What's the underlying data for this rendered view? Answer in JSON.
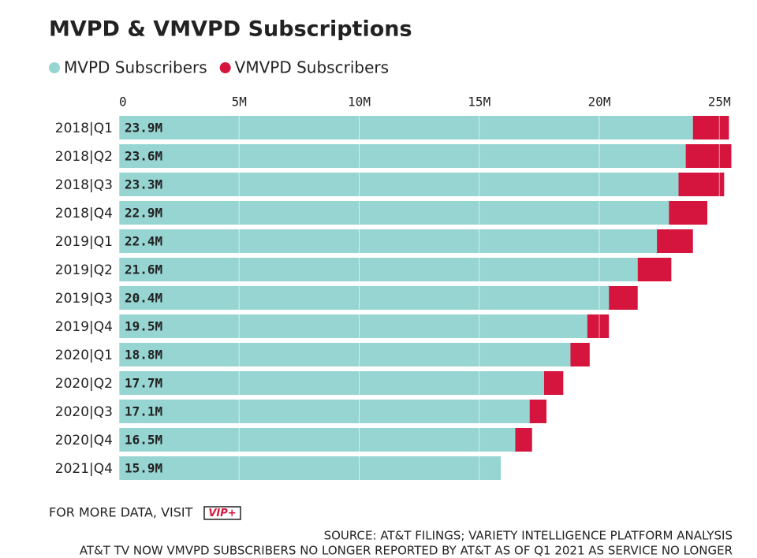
{
  "chart_data": {
    "type": "bar",
    "orientation": "horizontal",
    "stacked": true,
    "title": "MVPD & VMVPD Subscriptions",
    "categories": [
      "2018|Q1",
      "2018|Q2",
      "2018|Q3",
      "2018|Q4",
      "2019|Q1",
      "2019|Q2",
      "2019|Q3",
      "2019|Q4",
      "2020|Q1",
      "2020|Q2",
      "2020|Q3",
      "2020|Q4",
      "2021|Q4"
    ],
    "series": [
      {
        "name": "MVPD Subscribers",
        "color": "#96d5d2",
        "values": [
          23.9,
          23.6,
          23.3,
          22.9,
          22.4,
          21.6,
          20.4,
          19.5,
          18.8,
          17.7,
          17.1,
          16.5,
          15.9
        ],
        "value_labels": [
          "23.9M",
          "23.6M",
          "23.3M",
          "22.9M",
          "22.4M",
          "21.6M",
          "20.4M",
          "19.5M",
          "18.8M",
          "17.7M",
          "17.1M",
          "16.5M",
          "15.9M"
        ]
      },
      {
        "name": "VMVPD Subscribers",
        "color": "#d6153f",
        "values": [
          1.5,
          1.9,
          1.9,
          1.6,
          1.5,
          1.4,
          1.2,
          0.9,
          0.8,
          0.8,
          0.7,
          0.7,
          null
        ]
      }
    ],
    "xlim": [
      0,
      26
    ],
    "xticks": [
      0,
      {
        "value": 5,
        "label": "5M"
      },
      {
        "value": 10,
        "label": "10M"
      },
      {
        "value": 15,
        "label": "15M"
      },
      {
        "value": 20,
        "label": "20M"
      },
      {
        "value": 25,
        "label": "25M"
      }
    ],
    "grid": true,
    "legend": "top-left"
  },
  "footer": {
    "more_data": "FOR MORE DATA, VISIT",
    "badge": "VIP+",
    "source": "SOURCE: AT&T FILINGS; VARIETY INTELLIGENCE PLATFORM ANALYSIS",
    "note": "AT&T TV NOW VMVPD SUBSCRIBERS NO LONGER REPORTED BY AT&T AS OF Q1 2021 AS SERVICE NO LONGER"
  }
}
